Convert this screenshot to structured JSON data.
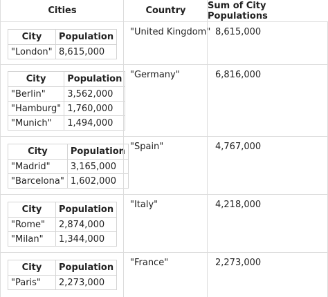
{
  "headers": {
    "cities": "Cities",
    "country": "Country",
    "sum": "Sum of City Populations"
  },
  "subtable_headers": {
    "city": "City",
    "population": "Population"
  },
  "rows": [
    {
      "country": "\"United Kingdom\"",
      "sum": "8,615,000",
      "cities": [
        {
          "city": "\"London\"",
          "population": "8,615,000"
        }
      ]
    },
    {
      "country": "\"Germany\"",
      "sum": "6,816,000",
      "cities": [
        {
          "city": "\"Berlin\"",
          "population": "3,562,000"
        },
        {
          "city": "\"Hamburg\"",
          "population": "1,760,000"
        },
        {
          "city": "\"Munich\"",
          "population": "1,494,000"
        }
      ]
    },
    {
      "country": "\"Spain\"",
      "sum": "4,767,000",
      "cities": [
        {
          "city": "\"Madrid\"",
          "population": "3,165,000"
        },
        {
          "city": "\"Barcelona\"",
          "population": "1,602,000"
        }
      ]
    },
    {
      "country": "\"Italy\"",
      "sum": "4,218,000",
      "cities": [
        {
          "city": "\"Rome\"",
          "population": "2,874,000"
        },
        {
          "city": "\"Milan\"",
          "population": "1,344,000"
        }
      ]
    },
    {
      "country": "\"France\"",
      "sum": "2,273,000",
      "cities": [
        {
          "city": "\"Paris\"",
          "population": "2,273,000"
        }
      ]
    }
  ]
}
